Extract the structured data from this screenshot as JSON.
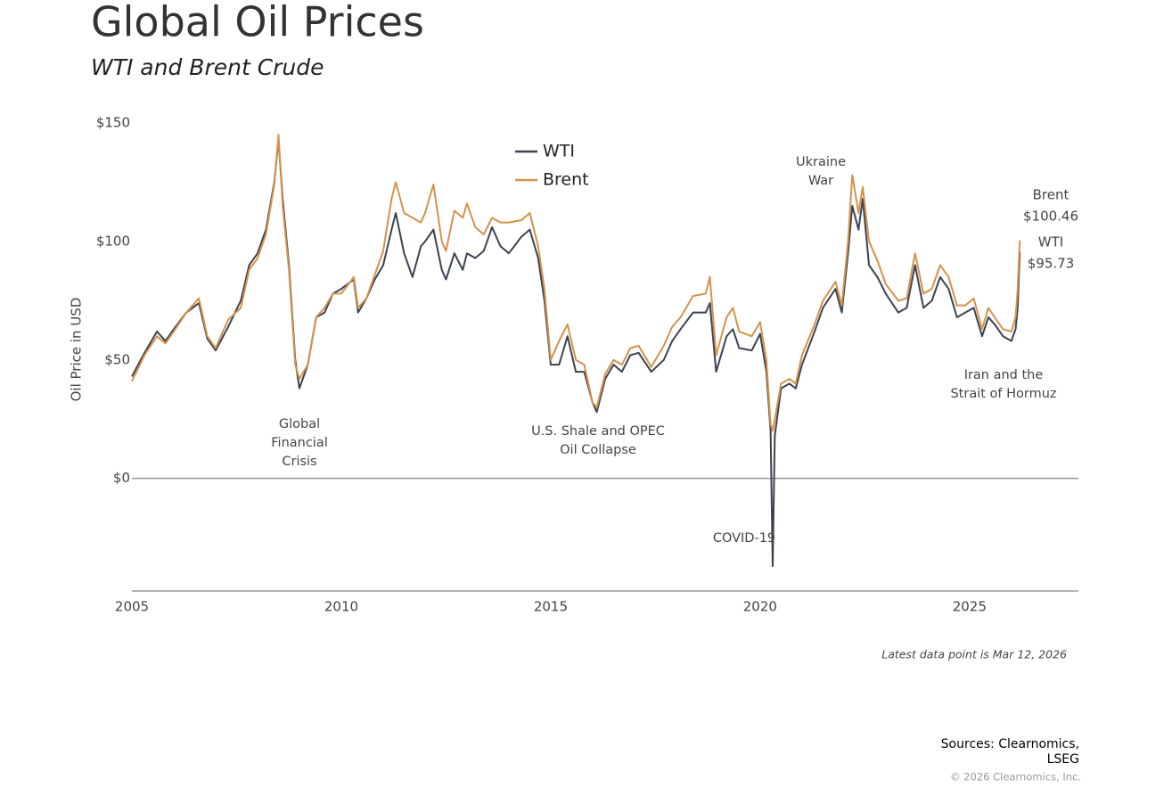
{
  "chart_data": {
    "type": "line",
    "title": "Global Oil Prices",
    "subtitle": "WTI and Brent Crude",
    "y_label": "Oil Price in USD",
    "x": [
      2005,
      2005.3,
      2005.6,
      2005.8,
      2006,
      2006.3,
      2006.6,
      2006.8,
      2007,
      2007.3,
      2007.6,
      2007.8,
      2008,
      2008.2,
      2008.4,
      2008.5,
      2008.6,
      2008.75,
      2008.9,
      2009,
      2009.2,
      2009.4,
      2009.6,
      2009.8,
      2010,
      2010.3,
      2010.4,
      2010.6,
      2010.8,
      2011,
      2011.2,
      2011.3,
      2011.5,
      2011.7,
      2011.9,
      2012,
      2012.2,
      2012.4,
      2012.5,
      2012.7,
      2012.9,
      2013,
      2013.2,
      2013.4,
      2013.6,
      2013.8,
      2014,
      2014.3,
      2014.5,
      2014.7,
      2014.85,
      2015,
      2015.2,
      2015.4,
      2015.6,
      2015.8,
      2016,
      2016.1,
      2016.3,
      2016.5,
      2016.7,
      2016.9,
      2017.1,
      2017.4,
      2017.7,
      2017.9,
      2018.1,
      2018.4,
      2018.7,
      2018.8,
      2018.95,
      2019.2,
      2019.35,
      2019.5,
      2019.8,
      2020,
      2020.15,
      2020.25,
      2020.3,
      2020.35,
      2020.5,
      2020.7,
      2020.85,
      2021,
      2021.3,
      2021.5,
      2021.8,
      2021.95,
      2022.1,
      2022.2,
      2022.35,
      2022.45,
      2022.6,
      2022.8,
      2023,
      2023.3,
      2023.5,
      2023.7,
      2023.9,
      2024.1,
      2024.3,
      2024.5,
      2024.7,
      2024.9,
      2025.1,
      2025.3,
      2025.45,
      2025.6,
      2025.8,
      2026,
      2026.1,
      2026.15,
      2026.2
    ],
    "series": [
      {
        "name": "WTI",
        "color": "#3b4350",
        "last_label": "$95.73",
        "values": [
          43,
          53,
          62,
          58,
          63,
          70,
          74,
          59,
          54,
          64,
          75,
          90,
          95,
          105,
          125,
          143,
          118,
          90,
          50,
          38,
          48,
          68,
          70,
          78,
          80,
          84,
          70,
          76,
          84,
          90,
          105,
          112,
          95,
          85,
          98,
          100,
          105,
          88,
          84,
          95,
          88,
          95,
          93,
          96,
          106,
          98,
          95,
          102,
          105,
          93,
          75,
          48,
          48,
          60,
          45,
          45,
          32,
          28,
          42,
          48,
          45,
          52,
          53,
          45,
          50,
          58,
          63,
          70,
          70,
          74,
          45,
          60,
          63,
          55,
          54,
          61,
          45,
          20,
          -37,
          18,
          38,
          40,
          38,
          48,
          62,
          72,
          80,
          70,
          95,
          115,
          105,
          118,
          90,
          85,
          78,
          70,
          72,
          90,
          72,
          75,
          85,
          80,
          68,
          70,
          72,
          60,
          68,
          65,
          60,
          58,
          63,
          72,
          95.73
        ]
      },
      {
        "name": "Brent",
        "color": "#d4924b",
        "last_label": "$100.46",
        "values": [
          41,
          52,
          60,
          57,
          62,
          70,
          76,
          60,
          55,
          67,
          72,
          88,
          93,
          103,
          124,
          145,
          115,
          88,
          48,
          42,
          48,
          68,
          72,
          78,
          78,
          85,
          72,
          76,
          86,
          96,
          118,
          125,
          112,
          110,
          108,
          112,
          124,
          100,
          96,
          113,
          110,
          116,
          106,
          103,
          110,
          108,
          108,
          109,
          112,
          98,
          80,
          50,
          58,
          65,
          50,
          48,
          32,
          30,
          44,
          50,
          48,
          55,
          56,
          47,
          56,
          64,
          68,
          77,
          78,
          85,
          52,
          68,
          72,
          62,
          60,
          66,
          50,
          23,
          20,
          25,
          40,
          42,
          40,
          52,
          65,
          75,
          83,
          73,
          100,
          128,
          112,
          123,
          100,
          92,
          82,
          75,
          76,
          95,
          78,
          80,
          90,
          85,
          73,
          73,
          76,
          63,
          72,
          68,
          63,
          62,
          68,
          80,
          100.46
        ]
      }
    ],
    "xlim": [
      2005,
      2027.6
    ],
    "xticks": [
      2005,
      2010,
      2015,
      2020,
      2025
    ],
    "ylim": [
      -47.5,
      150
    ],
    "yticks": [
      {
        "value": 0,
        "label": "$0"
      },
      {
        "value": 50,
        "label": "$50"
      },
      {
        "value": 100,
        "label": "$100"
      },
      {
        "value": 150,
        "label": "$150"
      }
    ],
    "grid": false,
    "legend": "top-center",
    "annotations": [
      [
        "Global",
        "Financial",
        "Crisis"
      ],
      [
        "U.S. Shale and OPEC",
        "Oil Collapse"
      ],
      [
        "COVID-19"
      ],
      [
        "Ukraine",
        "War"
      ],
      [
        "Iran and the",
        "Strait of Hormuz"
      ]
    ],
    "note": "Latest data point is Mar 12, 2026",
    "source": [
      "Sources: Clearnomics,",
      "LSEG"
    ],
    "copyright": "© 2026 Clearnomics, Inc."
  }
}
